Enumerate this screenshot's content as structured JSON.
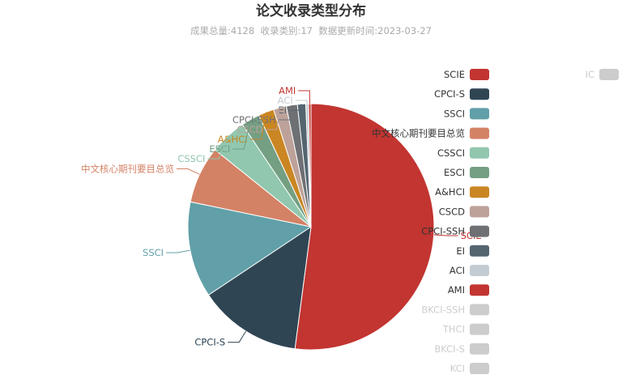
{
  "chart_data": {
    "type": "pie",
    "title": "论文收录类型分布",
    "subtitle": "成果总量:4128  收录类别:17  数据更新时间:2023-03-27",
    "legend_placement": "right",
    "slices": [
      {
        "name": "SCIE",
        "value": 2150,
        "color": "#c23531",
        "active": true
      },
      {
        "name": "CPCI-S",
        "value": 560,
        "color": "#2f4554",
        "active": true
      },
      {
        "name": "SSCI",
        "value": 520,
        "color": "#61a0a8",
        "active": true
      },
      {
        "name": "中文核心期刊要目总览",
        "value": 310,
        "color": "#d48265",
        "active": true
      },
      {
        "name": "CSSCI",
        "value": 200,
        "color": "#91c7ae",
        "active": true
      },
      {
        "name": "ESCI",
        "value": 100,
        "color": "#749f83",
        "active": true
      },
      {
        "name": "A&HCI",
        "value": 85,
        "color": "#ca8622",
        "active": true
      },
      {
        "name": "CSCD",
        "value": 70,
        "color": "#bda29a",
        "active": true
      },
      {
        "name": "CPCI-SSH",
        "value": 60,
        "color": "#6e7074",
        "active": true
      },
      {
        "name": "EI",
        "value": 45,
        "color": "#546570",
        "active": true
      },
      {
        "name": "ACI",
        "value": 15,
        "color": "#c4ccd3",
        "active": true
      },
      {
        "name": "AMI",
        "value": 13,
        "color": "#c23531",
        "active": true
      },
      {
        "name": "BKCI-SSH",
        "value": 0,
        "color": "#cccccc",
        "active": false
      },
      {
        "name": "THCI",
        "value": 0,
        "color": "#cccccc",
        "active": false
      },
      {
        "name": "BKCI-S",
        "value": 0,
        "color": "#cccccc",
        "active": false
      },
      {
        "name": "KCI",
        "value": 0,
        "color": "#cccccc",
        "active": false
      },
      {
        "name": "IC",
        "value": 0,
        "color": "#cccccc",
        "active": false
      }
    ]
  }
}
